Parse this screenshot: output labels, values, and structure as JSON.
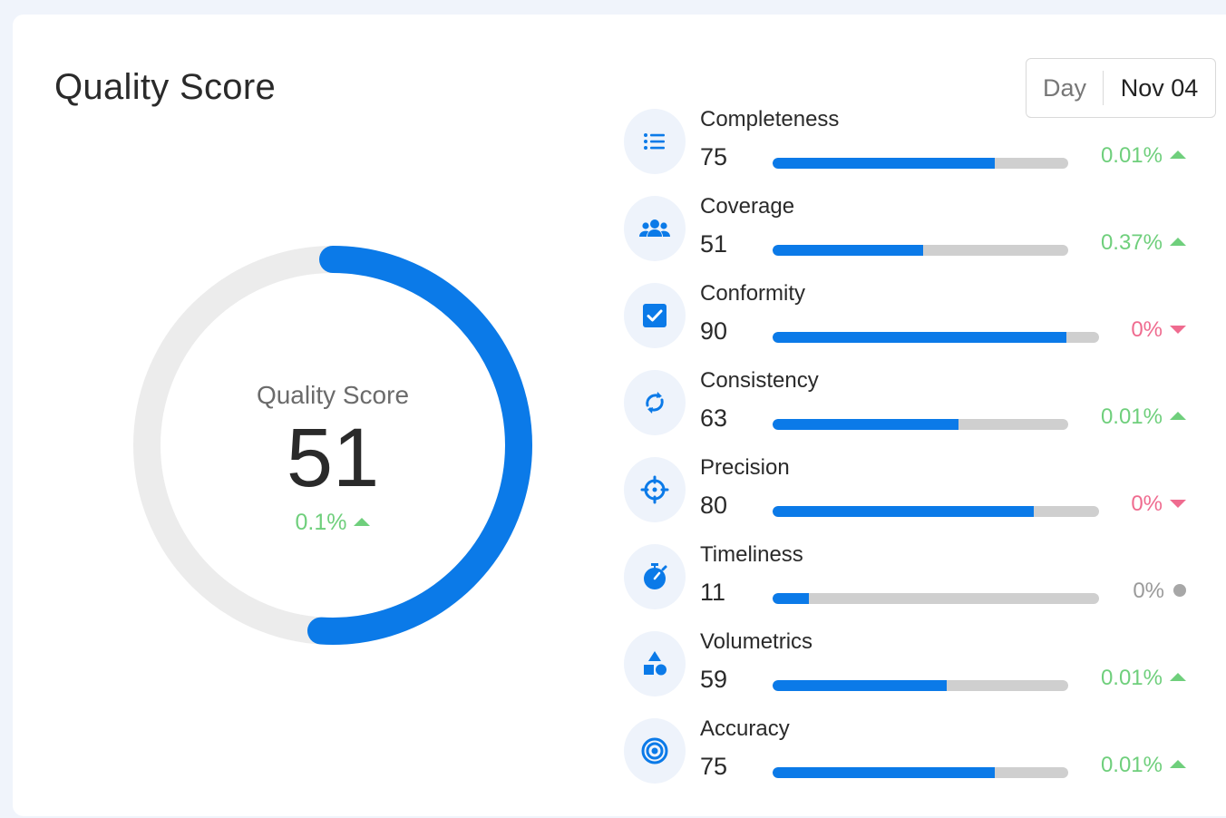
{
  "header": {
    "title": "Quality Score",
    "period": "Day",
    "date": "Nov 04"
  },
  "gauge": {
    "label": "Quality Score",
    "value": 51,
    "value_text": "51",
    "change": "0.1%",
    "trend": "up"
  },
  "colors": {
    "accent": "#0b7ae8",
    "track": "#ececec",
    "up": "#6fcf7c",
    "down": "#ef6b8f",
    "neutral": "#a7a7a7"
  },
  "metrics": [
    {
      "name": "Completeness",
      "value": "75",
      "percent": 75,
      "change": "0.01%",
      "trend": "up",
      "icon": "list-icon"
    },
    {
      "name": "Coverage",
      "value": "51",
      "percent": 51,
      "change": "0.37%",
      "trend": "up",
      "icon": "users-icon"
    },
    {
      "name": "Conformity",
      "value": "90",
      "percent": 90,
      "change": "0%",
      "trend": "down",
      "icon": "checkbox-icon"
    },
    {
      "name": "Consistency",
      "value": "63",
      "percent": 63,
      "change": "0.01%",
      "trend": "up",
      "icon": "sync-icon"
    },
    {
      "name": "Precision",
      "value": "80",
      "percent": 80,
      "change": "0%",
      "trend": "down",
      "icon": "crosshair-icon"
    },
    {
      "name": "Timeliness",
      "value": "11",
      "percent": 11,
      "change": "0%",
      "trend": "flat",
      "icon": "stopwatch-icon"
    },
    {
      "name": "Volumetrics",
      "value": "59",
      "percent": 59,
      "change": "0.01%",
      "trend": "up",
      "icon": "shapes-icon"
    },
    {
      "name": "Accuracy",
      "value": "75",
      "percent": 75,
      "change": "0.01%",
      "trend": "up",
      "icon": "target-icon"
    }
  ]
}
